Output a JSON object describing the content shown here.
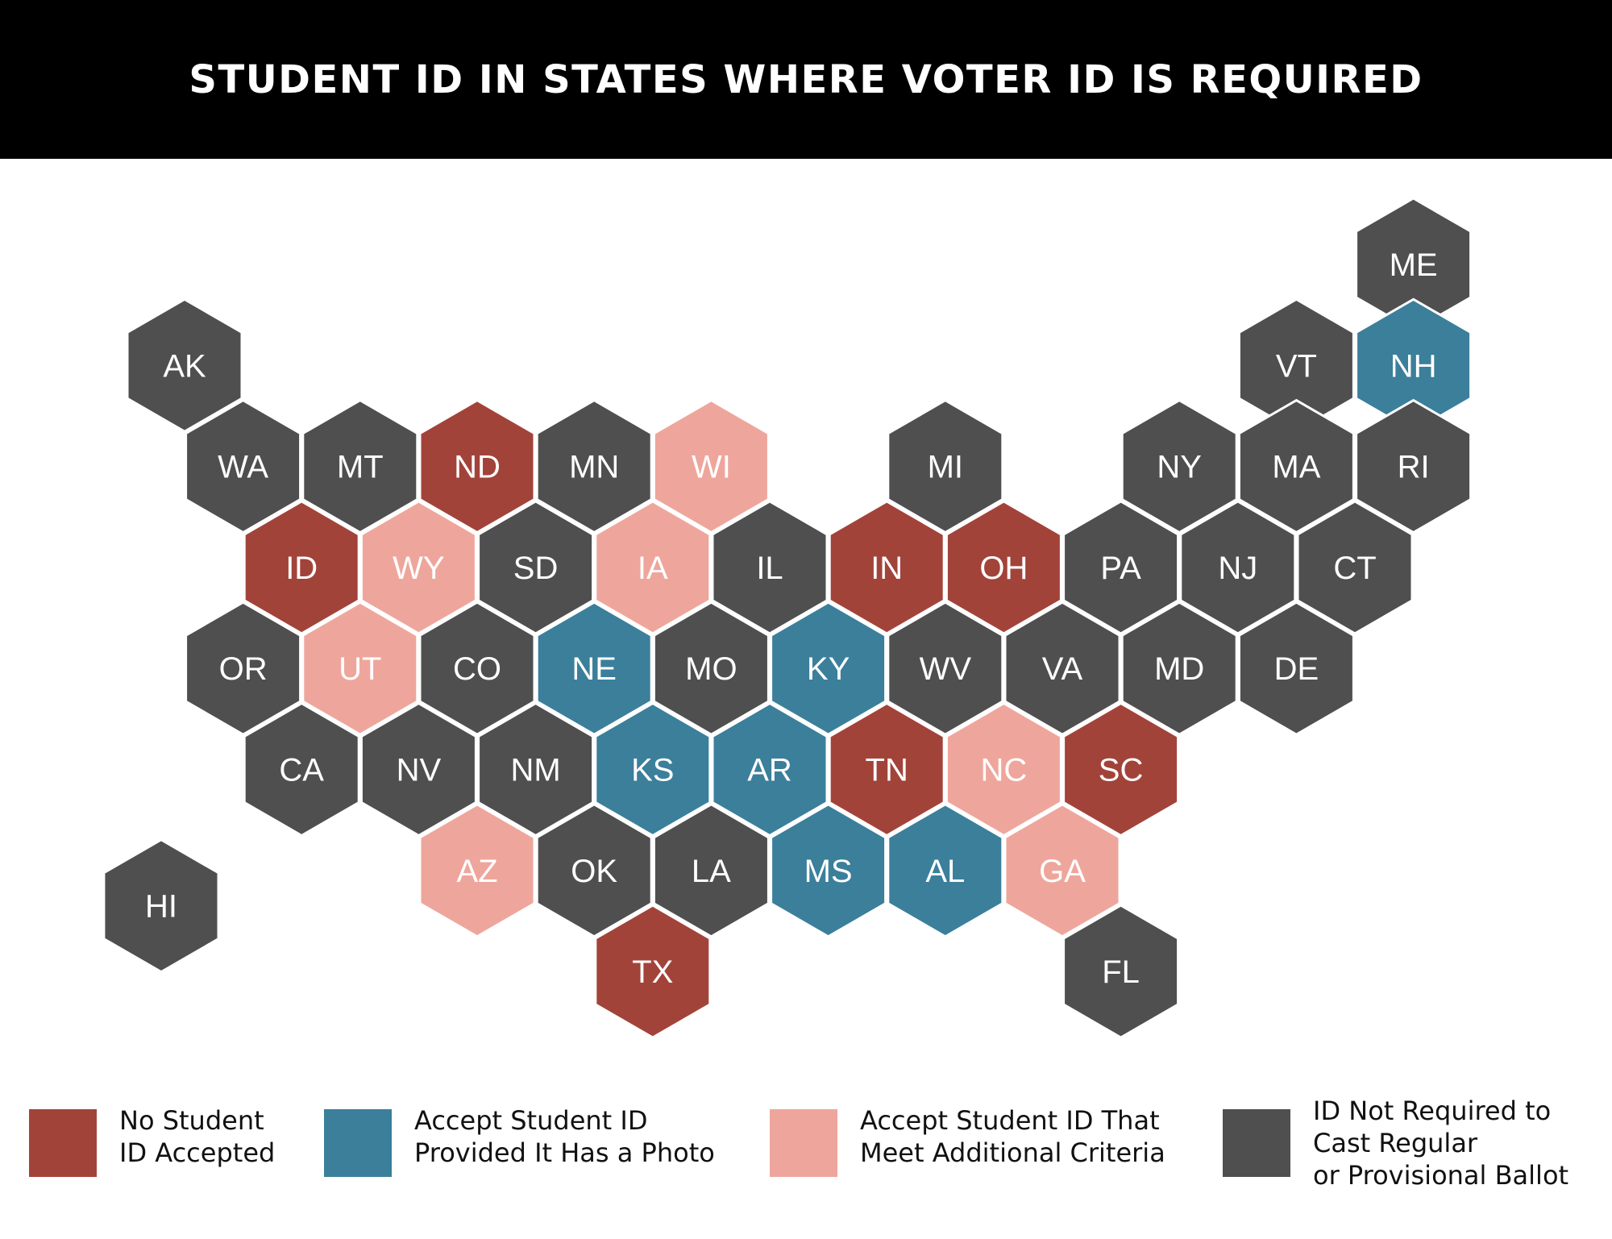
{
  "title": "STUDENT ID IN STATES WHERE VOTER ID IS REQUIRED",
  "colors": {
    "no_id": "#a2433a",
    "photo": "#3b7f9b",
    "criteria": "#eea69c",
    "not_required": "#4f4f4f"
  },
  "states": [
    {
      "abbr": "ME",
      "cat": "not_required",
      "row": 0,
      "col": 10.5
    },
    {
      "abbr": "AK",
      "cat": "not_required",
      "row": 1,
      "col": 0
    },
    {
      "abbr": "VT",
      "cat": "not_required",
      "row": 1,
      "col": 9.5
    },
    {
      "abbr": "NH",
      "cat": "photo",
      "row": 1,
      "col": 10.5
    },
    {
      "abbr": "WA",
      "cat": "not_required",
      "row": 2,
      "col": 0.5
    },
    {
      "abbr": "MT",
      "cat": "not_required",
      "row": 2,
      "col": 1.5
    },
    {
      "abbr": "ND",
      "cat": "no_id",
      "row": 2,
      "col": 2.5
    },
    {
      "abbr": "MN",
      "cat": "not_required",
      "row": 2,
      "col": 3.5
    },
    {
      "abbr": "WI",
      "cat": "criteria",
      "row": 2,
      "col": 4.5
    },
    {
      "abbr": "MI",
      "cat": "not_required",
      "row": 2,
      "col": 6.5
    },
    {
      "abbr": "NY",
      "cat": "not_required",
      "row": 2,
      "col": 8.5
    },
    {
      "abbr": "MA",
      "cat": "not_required",
      "row": 2,
      "col": 9.5
    },
    {
      "abbr": "RI",
      "cat": "not_required",
      "row": 2,
      "col": 10.5
    },
    {
      "abbr": "ID",
      "cat": "no_id",
      "row": 3,
      "col": 1
    },
    {
      "abbr": "WY",
      "cat": "criteria",
      "row": 3,
      "col": 2
    },
    {
      "abbr": "SD",
      "cat": "not_required",
      "row": 3,
      "col": 3
    },
    {
      "abbr": "IA",
      "cat": "criteria",
      "row": 3,
      "col": 4
    },
    {
      "abbr": "IL",
      "cat": "not_required",
      "row": 3,
      "col": 5
    },
    {
      "abbr": "IN",
      "cat": "no_id",
      "row": 3,
      "col": 6
    },
    {
      "abbr": "OH",
      "cat": "no_id",
      "row": 3,
      "col": 7
    },
    {
      "abbr": "PA",
      "cat": "not_required",
      "row": 3,
      "col": 8
    },
    {
      "abbr": "NJ",
      "cat": "not_required",
      "row": 3,
      "col": 9
    },
    {
      "abbr": "CT",
      "cat": "not_required",
      "row": 3,
      "col": 10
    },
    {
      "abbr": "OR",
      "cat": "not_required",
      "row": 4,
      "col": 0.5
    },
    {
      "abbr": "UT",
      "cat": "criteria",
      "row": 4,
      "col": 1.5
    },
    {
      "abbr": "CO",
      "cat": "not_required",
      "row": 4,
      "col": 2.5
    },
    {
      "abbr": "NE",
      "cat": "photo",
      "row": 4,
      "col": 3.5
    },
    {
      "abbr": "MO",
      "cat": "not_required",
      "row": 4,
      "col": 4.5
    },
    {
      "abbr": "KY",
      "cat": "photo",
      "row": 4,
      "col": 5.5
    },
    {
      "abbr": "WV",
      "cat": "not_required",
      "row": 4,
      "col": 6.5
    },
    {
      "abbr": "VA",
      "cat": "not_required",
      "row": 4,
      "col": 7.5
    },
    {
      "abbr": "MD",
      "cat": "not_required",
      "row": 4,
      "col": 8.5
    },
    {
      "abbr": "DE",
      "cat": "not_required",
      "row": 4,
      "col": 9.5
    },
    {
      "abbr": "CA",
      "cat": "not_required",
      "row": 5,
      "col": 1
    },
    {
      "abbr": "NV",
      "cat": "not_required",
      "row": 5,
      "col": 2
    },
    {
      "abbr": "NM",
      "cat": "not_required",
      "row": 5,
      "col": 3
    },
    {
      "abbr": "KS",
      "cat": "photo",
      "row": 5,
      "col": 4
    },
    {
      "abbr": "AR",
      "cat": "photo",
      "row": 5,
      "col": 5
    },
    {
      "abbr": "TN",
      "cat": "no_id",
      "row": 5,
      "col": 6
    },
    {
      "abbr": "NC",
      "cat": "criteria",
      "row": 5,
      "col": 7
    },
    {
      "abbr": "SC",
      "cat": "no_id",
      "row": 5,
      "col": 8
    },
    {
      "abbr": "AZ",
      "cat": "criteria",
      "row": 6,
      "col": 2.5
    },
    {
      "abbr": "OK",
      "cat": "not_required",
      "row": 6,
      "col": 3.5
    },
    {
      "abbr": "LA",
      "cat": "not_required",
      "row": 6,
      "col": 4.5
    },
    {
      "abbr": "MS",
      "cat": "photo",
      "row": 6,
      "col": 5.5
    },
    {
      "abbr": "AL",
      "cat": "photo",
      "row": 6,
      "col": 6.5
    },
    {
      "abbr": "GA",
      "cat": "criteria",
      "row": 6,
      "col": 7.5
    },
    {
      "abbr": "HI",
      "cat": "not_required",
      "row": 6.35,
      "col": -0.2
    },
    {
      "abbr": "TX",
      "cat": "no_id",
      "row": 7,
      "col": 4
    },
    {
      "abbr": "FL",
      "cat": "not_required",
      "row": 7,
      "col": 8
    }
  ],
  "legend": [
    {
      "cat": "no_id",
      "lines": [
        "No Student",
        "ID Accepted"
      ]
    },
    {
      "cat": "photo",
      "lines": [
        "Accept Student ID",
        "Provided It Has a Photo"
      ]
    },
    {
      "cat": "criteria",
      "lines": [
        "Accept Student ID That",
        "Meet Additional Criteria"
      ]
    },
    {
      "cat": "not_required",
      "lines": [
        "ID Not Required to",
        "Cast Regular",
        "or Provisional Ballot"
      ]
    }
  ]
}
